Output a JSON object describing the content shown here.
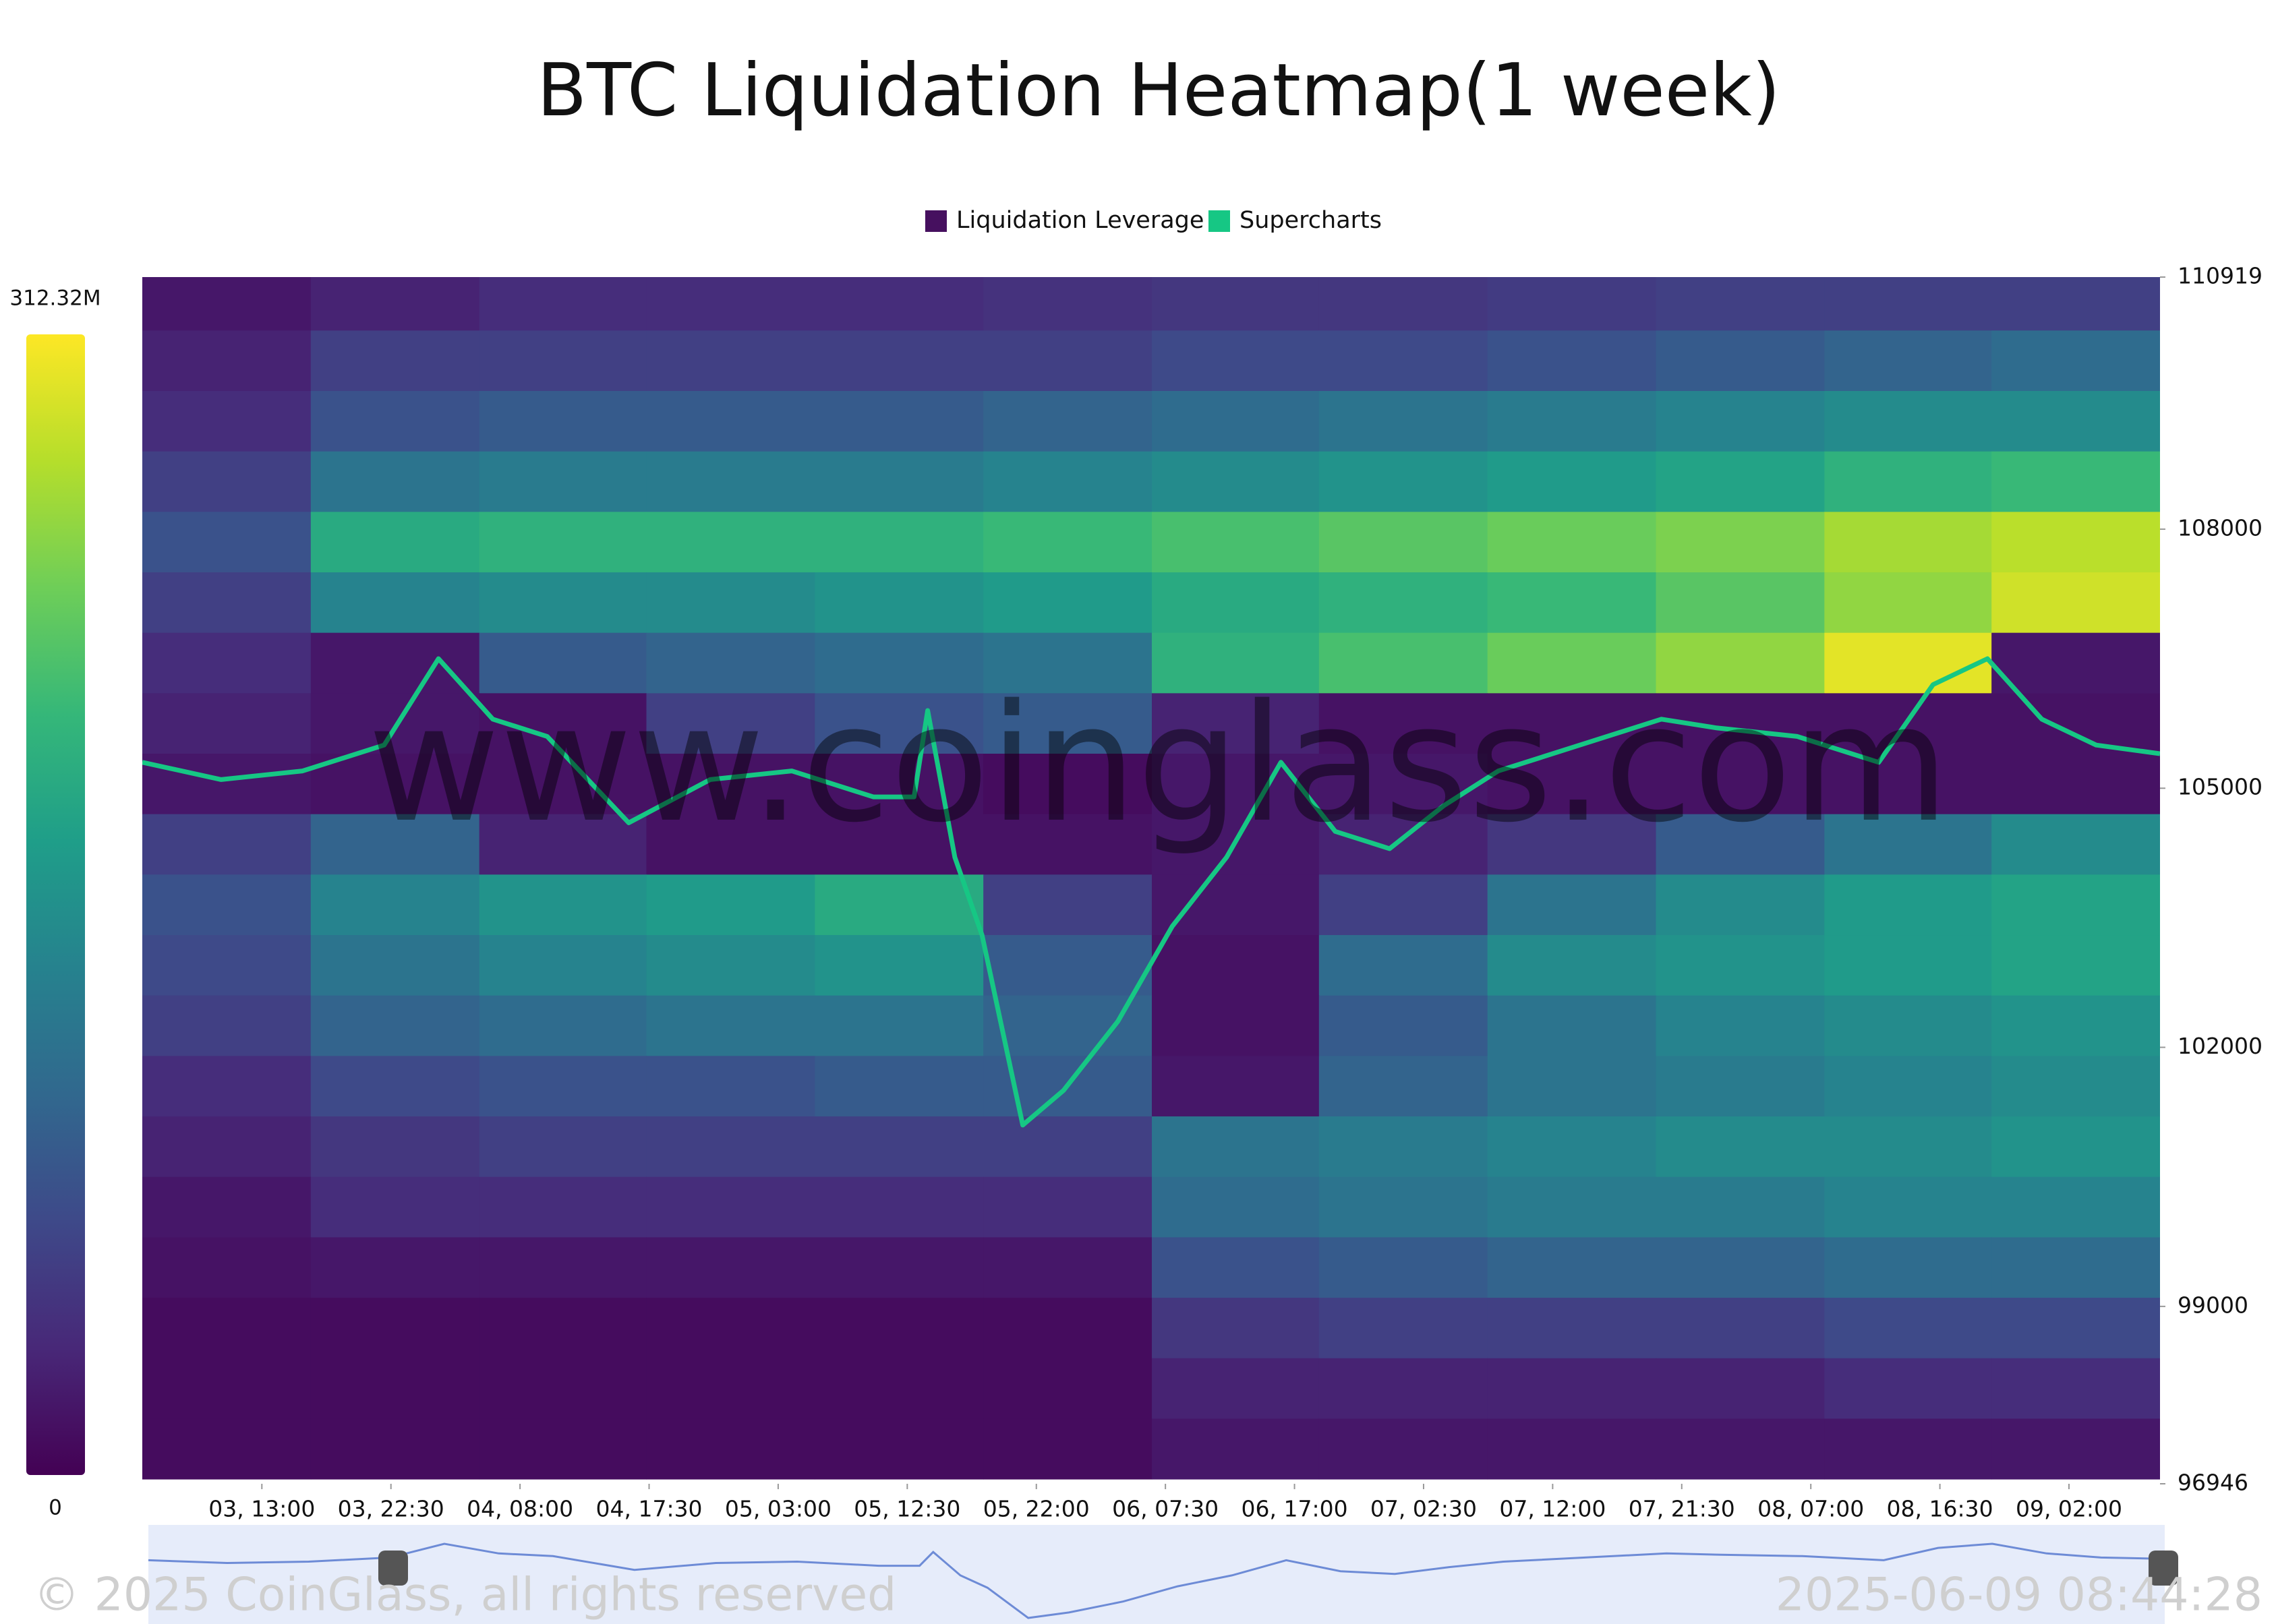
{
  "chart_data": {
    "type": "heatmap",
    "title": "BTC Liquidation Heatmap(1 week)",
    "colormap": "viridis",
    "clim": [
      0,
      312.32
    ],
    "colorbar_ticks": [
      {
        "value": 312.32,
        "label": "312.32M"
      },
      0
    ],
    "xlim": [
      4.2,
      152.7
    ],
    "xticks": [
      {
        "value": 13,
        "label": "03, 13:00"
      },
      {
        "value": 22.5,
        "label": "03, 22:30"
      },
      {
        "value": 32,
        "label": "04, 08:00"
      },
      {
        "value": 41.5,
        "label": "04, 17:30"
      },
      {
        "value": 51,
        "label": "05, 03:00"
      },
      {
        "value": 60.5,
        "label": "05, 12:30"
      },
      {
        "value": 70,
        "label": "05, 22:00"
      },
      {
        "value": 79.5,
        "label": "06, 07:30"
      },
      {
        "value": 89,
        "label": "06, 17:00"
      },
      {
        "value": 98.5,
        "label": "07, 02:30"
      },
      {
        "value": 108,
        "label": "07, 12:00"
      },
      {
        "value": 117.5,
        "label": "07, 21:30"
      },
      {
        "value": 127,
        "label": "08, 07:00"
      },
      {
        "value": 136.5,
        "label": "08, 16:30"
      },
      {
        "value": 146,
        "label": "09, 02:00"
      }
    ],
    "ylim": [
      96946,
      110919
    ],
    "yticks": [
      96946,
      99000,
      102000,
      105000,
      108000,
      110919
    ],
    "series": [
      {
        "name": "Liquidation Leverage",
        "color": "#46105f",
        "x_edges": [
          4.2,
          16.6,
          29,
          41.3,
          53.7,
          66.1,
          78.5,
          90.8,
          103.2,
          115.6,
          128,
          140.3,
          152.7
        ],
        "y_edges": [
          111000,
          110300,
          109600,
          108900,
          108200,
          107500,
          106800,
          106100,
          105400,
          104700,
          104000,
          103300,
          102600,
          101900,
          101200,
          100500,
          99800,
          99100,
          98400,
          97700,
          97000
        ],
        "z": [
          [
            20,
            30,
            40,
            40,
            40,
            45,
            50,
            50,
            55,
            60,
            60,
            60
          ],
          [
            30,
            60,
            60,
            60,
            60,
            60,
            70,
            70,
            80,
            90,
            100,
            110
          ],
          [
            40,
            80,
            90,
            90,
            90,
            100,
            110,
            120,
            130,
            140,
            150,
            150
          ],
          [
            60,
            120,
            130,
            130,
            130,
            140,
            150,
            160,
            170,
            180,
            200,
            210
          ],
          [
            80,
            190,
            200,
            200,
            200,
            210,
            220,
            230,
            240,
            250,
            270,
            280
          ],
          [
            60,
            140,
            150,
            150,
            160,
            170,
            190,
            200,
            210,
            230,
            260,
            290
          ],
          [
            40,
            20,
            90,
            100,
            110,
            120,
            200,
            220,
            240,
            260,
            300,
            20
          ],
          [
            30,
            20,
            15,
            60,
            80,
            90,
            30,
            15,
            15,
            15,
            15,
            15
          ],
          [
            20,
            15,
            15,
            15,
            15,
            10,
            20,
            20,
            15,
            15,
            15,
            15
          ],
          [
            60,
            100,
            30,
            15,
            15,
            15,
            20,
            30,
            50,
            90,
            120,
            150
          ],
          [
            80,
            140,
            160,
            170,
            190,
            60,
            20,
            60,
            120,
            150,
            170,
            180
          ],
          [
            70,
            120,
            140,
            150,
            160,
            90,
            15,
            110,
            150,
            160,
            170,
            180
          ],
          [
            60,
            100,
            110,
            120,
            120,
            100,
            15,
            90,
            120,
            140,
            150,
            160
          ],
          [
            40,
            70,
            80,
            80,
            90,
            90,
            20,
            100,
            120,
            130,
            140,
            150
          ],
          [
            30,
            50,
            60,
            60,
            60,
            60,
            120,
            130,
            140,
            150,
            150,
            160
          ],
          [
            20,
            40,
            40,
            40,
            40,
            40,
            110,
            120,
            130,
            130,
            140,
            140
          ],
          [
            15,
            20,
            20,
            20,
            20,
            20,
            80,
            90,
            100,
            100,
            110,
            110
          ],
          [
            10,
            10,
            10,
            10,
            10,
            10,
            50,
            60,
            60,
            60,
            70,
            70
          ],
          [
            10,
            10,
            10,
            10,
            10,
            10,
            30,
            30,
            30,
            30,
            40,
            40
          ],
          [
            10,
            10,
            10,
            10,
            10,
            10,
            20,
            20,
            20,
            20,
            20,
            20
          ]
        ]
      },
      {
        "name": "Supercharts",
        "color": "#16c784",
        "x": [
          4.2,
          10,
          16,
          22,
          26,
          30,
          34,
          40,
          46,
          52,
          58,
          61,
          62,
          64,
          66,
          69,
          72,
          76,
          80,
          84,
          88,
          92,
          96,
          100,
          104,
          110,
          116,
          120,
          126,
          132,
          136,
          140,
          144,
          148,
          152.7
        ],
        "values": [
          105300,
          105100,
          105200,
          105500,
          106500,
          105800,
          105600,
          104600,
          105100,
          105200,
          104900,
          104900,
          105900,
          104200,
          103300,
          101100,
          101500,
          102300,
          103400,
          104200,
          105300,
          104500,
          104300,
          104800,
          105200,
          105500,
          105800,
          105700,
          105600,
          105300,
          106200,
          106500,
          105800,
          105500,
          105400
        ]
      }
    ],
    "watermark": "www.coinglass.com",
    "copyright": "© 2025 CoinGlass, all rights reserved",
    "timestamp": "2025-06-09 08:44:28"
  }
}
